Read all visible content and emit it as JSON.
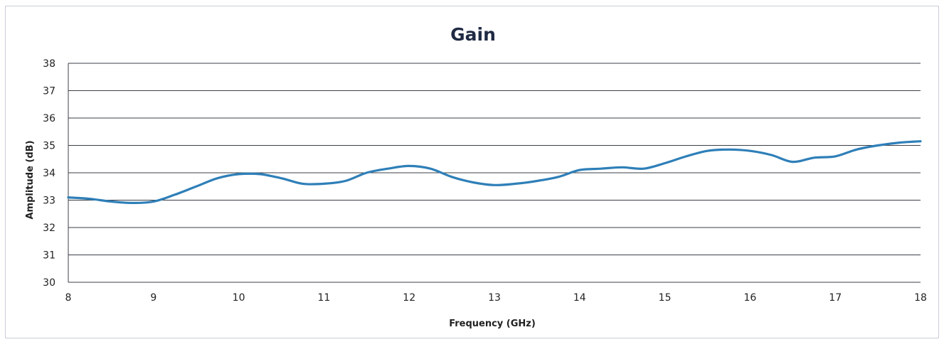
{
  "chart_data": {
    "type": "line",
    "title": "Gain",
    "xlabel": "Frequency (GHz)",
    "ylabel": "Amplitude (dB)",
    "xlim": [
      8,
      18
    ],
    "ylim": [
      30,
      38
    ],
    "x_ticks": [
      "8",
      "9",
      "10",
      "11",
      "12",
      "13",
      "14",
      "15",
      "16",
      "17",
      "18"
    ],
    "y_ticks": [
      "30",
      "31",
      "32",
      "33",
      "34",
      "35",
      "36",
      "37",
      "38"
    ],
    "grid": "horizontal",
    "legend": "none",
    "series": [
      {
        "color": "#2e7fb8",
        "x": [
          8.0,
          8.25,
          8.5,
          8.75,
          9.0,
          9.25,
          9.5,
          9.75,
          10.0,
          10.25,
          10.5,
          10.75,
          11.0,
          11.25,
          11.5,
          11.75,
          12.0,
          12.25,
          12.5,
          12.75,
          13.0,
          13.25,
          13.5,
          13.75,
          14.0,
          14.25,
          14.5,
          14.75,
          15.0,
          15.25,
          15.5,
          15.75,
          16.0,
          16.25,
          16.5,
          16.75,
          17.0,
          17.25,
          17.5,
          17.75,
          18.0
        ],
        "values": [
          33.1,
          33.05,
          32.95,
          32.9,
          32.95,
          33.2,
          33.5,
          33.8,
          33.95,
          33.95,
          33.8,
          33.6,
          33.6,
          33.7,
          34.0,
          34.15,
          34.25,
          34.15,
          33.85,
          33.65,
          33.55,
          33.6,
          33.7,
          33.85,
          34.1,
          34.15,
          34.2,
          34.15,
          34.35,
          34.6,
          34.8,
          34.85,
          34.8,
          34.65,
          34.4,
          34.55,
          34.6,
          34.85,
          35.0,
          35.1,
          35.15
        ]
      }
    ]
  }
}
